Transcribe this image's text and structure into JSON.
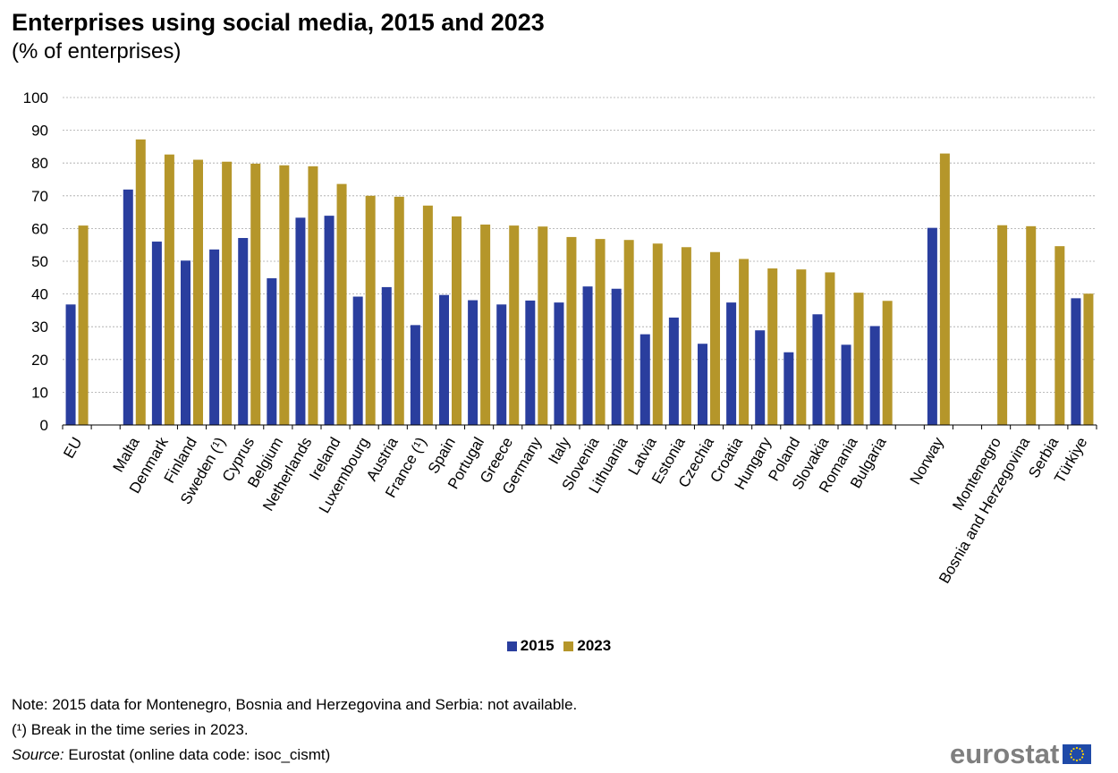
{
  "title": "Enterprises using social media, 2015 and 2023",
  "subtitle": "(% of enterprises)",
  "notes": {
    "note1": "Note: 2015 data for Montenegro, Bosnia and Herzegovina  and Serbia: not available.",
    "note2": "(¹) Break in the time series in 2023.",
    "source_label": "Source:",
    "source_text": " Eurostat (online data code: isoc_cismt)"
  },
  "logo": {
    "text": "eurostat",
    "flag_icon": "eu-flag-icon"
  },
  "colors": {
    "series_2015": "#2a3e9e",
    "series_2023": "#b5962a",
    "grid": "#a6a6a6"
  },
  "chart_data": {
    "type": "bar",
    "title": "Enterprises using social media, 2015 and 2023",
    "subtitle": "(% of enterprises)",
    "ylim": [
      0,
      100
    ],
    "yticks": [
      0,
      10,
      20,
      30,
      40,
      50,
      60,
      70,
      80,
      90,
      100
    ],
    "grid": true,
    "legend_position": "bottom",
    "categories": [
      "EU",
      "",
      "Malta",
      "Denmark",
      "Finland",
      "Sweden (¹)",
      "Cyprus",
      "Belgium",
      "Netherlands",
      "Ireland",
      "Luxembourg",
      "Austria",
      "France (¹)",
      "Spain",
      "Portugal",
      "Greece",
      "Germany",
      "Italy",
      "Slovenia",
      "Lithuania",
      "Latvia",
      "Estonia",
      "Czechia",
      "Croatia",
      "Hungary",
      "Poland",
      "Slovakia",
      "Romania",
      "Bulgaria",
      "",
      "Norway",
      "",
      "Montenegro",
      "Bosnia and Herzegovina",
      "Serbia",
      "Türkiye"
    ],
    "series": [
      {
        "name": "2015",
        "color": "#2a3e9e",
        "values": [
          36.8,
          null,
          71.9,
          56.0,
          50.2,
          53.6,
          57.1,
          44.8,
          63.3,
          63.9,
          39.2,
          42.1,
          30.5,
          39.7,
          38.1,
          36.8,
          38.0,
          37.4,
          42.3,
          41.6,
          27.7,
          32.8,
          24.8,
          37.4,
          28.9,
          22.2,
          33.8,
          24.5,
          30.2,
          null,
          60.2,
          null,
          null,
          null,
          null,
          38.7
        ]
      },
      {
        "name": "2023",
        "color": "#b5962a",
        "values": [
          60.9,
          null,
          87.2,
          82.6,
          81.0,
          80.4,
          79.8,
          79.3,
          79.0,
          73.6,
          70.0,
          69.7,
          67.0,
          63.7,
          61.2,
          60.9,
          60.6,
          57.4,
          56.8,
          56.5,
          55.4,
          54.3,
          52.8,
          50.7,
          47.8,
          47.5,
          46.6,
          40.4,
          37.9,
          null,
          82.9,
          null,
          61.0,
          60.7,
          54.6,
          40.1
        ]
      }
    ]
  }
}
